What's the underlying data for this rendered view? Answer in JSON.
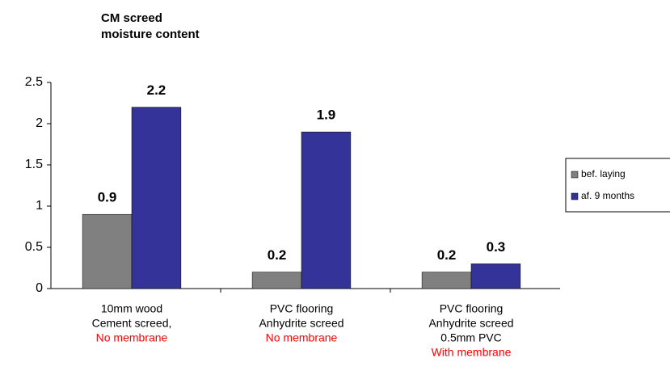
{
  "chart_data": {
    "type": "bar",
    "title": [
      "CM screed",
      "moisture content"
    ],
    "categories": [
      [
        "10mm wood",
        "Cement screed,"
      ],
      [
        "PVC flooring",
        "Anhydrite screed"
      ],
      [
        "PVC flooring",
        "Anhydrite screed",
        "0.5mm PVC"
      ]
    ],
    "category_notes": [
      "No membrane",
      "No membrane",
      "With membrane"
    ],
    "category_note_color": "#ff0000",
    "series": [
      {
        "name": "bef. laying",
        "color": "#808080",
        "values": [
          0.9,
          0.2,
          0.2
        ]
      },
      {
        "name": "af. 9 months",
        "color": "#333399",
        "values": [
          2.2,
          1.9,
          0.3
        ]
      }
    ],
    "ylim": [
      0,
      2.5
    ],
    "yticks": [
      0,
      0.5,
      1,
      1.5,
      2,
      2.5
    ],
    "grid": false,
    "legend": "right"
  }
}
